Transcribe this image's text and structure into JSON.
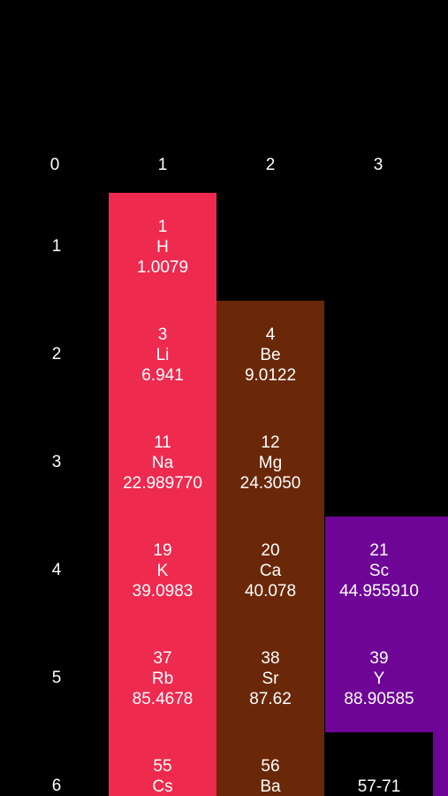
{
  "table": {
    "column_labels": [
      "0",
      "1",
      "2",
      "3"
    ],
    "row_labels": [
      "1",
      "2",
      "3",
      "4",
      "5",
      "6"
    ],
    "colors": {
      "group1": "#ee2a4e",
      "group2": "#6b2808",
      "group3": "#6e0596",
      "background": "#000000"
    },
    "elements": [
      {
        "number": "1",
        "symbol": "H",
        "mass": "1.0079"
      },
      {
        "number": "3",
        "symbol": "Li",
        "mass": "6.941"
      },
      {
        "number": "11",
        "symbol": "Na",
        "mass": "22.989770"
      },
      {
        "number": "19",
        "symbol": "K",
        "mass": "39.0983"
      },
      {
        "number": "37",
        "symbol": "Rb",
        "mass": "85.4678"
      },
      {
        "number": "55",
        "symbol": "Cs",
        "mass": ""
      },
      {
        "number": "4",
        "symbol": "Be",
        "mass": "9.0122"
      },
      {
        "number": "12",
        "symbol": "Mg",
        "mass": "24.3050"
      },
      {
        "number": "20",
        "symbol": "Ca",
        "mass": "40.078"
      },
      {
        "number": "38",
        "symbol": "Sr",
        "mass": "87.62"
      },
      {
        "number": "56",
        "symbol": "Ba",
        "mass": ""
      },
      {
        "number": "21",
        "symbol": "Sc",
        "mass": "44.955910"
      },
      {
        "number": "39",
        "symbol": "Y",
        "mass": "88.90585"
      }
    ],
    "lanthanide_range": "57-71"
  }
}
